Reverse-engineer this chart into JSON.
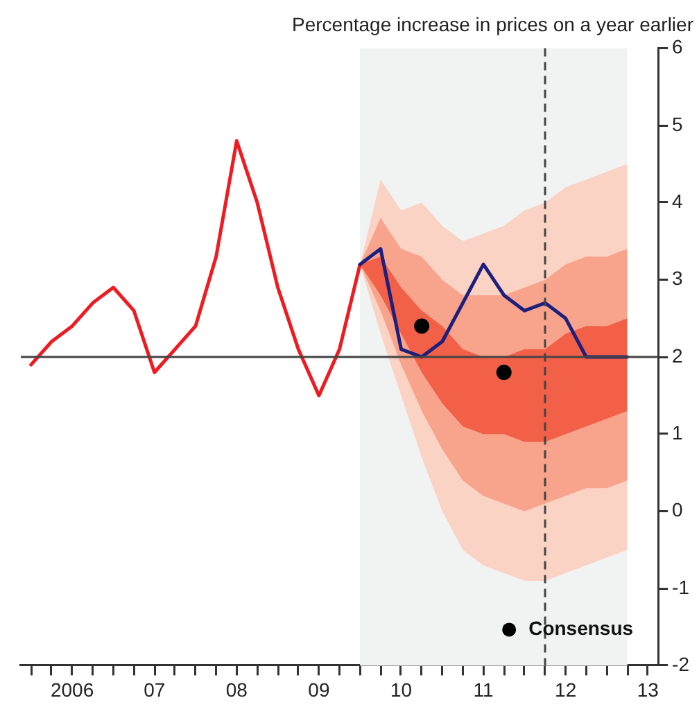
{
  "chart_data": {
    "type": "line",
    "title": "Percentage increase in prices on a year earlier",
    "categories": [
      null,
      null,
      "2006",
      null,
      null,
      null,
      "07",
      null,
      null,
      null,
      "08",
      null,
      null,
      null,
      "09",
      null,
      null,
      null,
      "10",
      null,
      null,
      null,
      "11",
      null,
      null,
      null,
      "12",
      null,
      null,
      null,
      "13"
    ],
    "ylim": [
      -2,
      6
    ],
    "yticks": [
      -2,
      -1,
      0,
      1,
      2,
      3,
      4,
      5,
      6
    ],
    "grid": false,
    "legend": "bottom right",
    "marker": "none",
    "line_style": "solid",
    "ref_lines": [
      {
        "axis": "y",
        "value": 2,
        "color": "#444444",
        "line_style": "solid"
      }
    ],
    "series": [
      {
        "type": "area",
        "color": "#fbd3c5",
        "values": [
          null,
          null,
          null,
          null,
          null,
          null,
          null,
          null,
          null,
          null,
          null,
          null,
          null,
          null,
          null,
          null,
          null,
          null,
          null,
          null,
          null,
          null,
          null,
          null,
          null,
          null,
          null,
          null,
          null,
          null,
          null
        ],
        "lower": [
          null,
          null,
          null,
          null,
          null,
          null,
          null,
          null,
          null,
          null,
          null,
          null,
          null,
          null,
          null,
          null,
          3.2,
          2.3,
          1.5,
          0.7,
          0.0,
          -0.5,
          -0.7,
          -0.8,
          -0.9,
          -0.9,
          -0.8,
          -0.7,
          -0.6,
          -0.5,
          null
        ],
        "upper": [
          null,
          null,
          null,
          null,
          null,
          null,
          null,
          null,
          null,
          null,
          null,
          null,
          null,
          null,
          null,
          null,
          3.2,
          4.3,
          3.9,
          4.0,
          3.7,
          3.5,
          3.6,
          3.7,
          3.9,
          4.0,
          4.2,
          4.3,
          4.4,
          4.5,
          null
        ]
      },
      {
        "type": "area",
        "color": "#f8a48d",
        "values": [
          null,
          null,
          null,
          null,
          null,
          null,
          null,
          null,
          null,
          null,
          null,
          null,
          null,
          null,
          null,
          null,
          null,
          null,
          null,
          null,
          null,
          null,
          null,
          null,
          null,
          null,
          null,
          null,
          null,
          null,
          null
        ],
        "lower": [
          null,
          null,
          null,
          null,
          null,
          null,
          null,
          null,
          null,
          null,
          null,
          null,
          null,
          null,
          null,
          null,
          3.2,
          2.6,
          1.9,
          1.3,
          0.8,
          0.4,
          0.2,
          0.1,
          0.0,
          0.1,
          0.2,
          0.3,
          0.3,
          0.4,
          null
        ],
        "upper": [
          null,
          null,
          null,
          null,
          null,
          null,
          null,
          null,
          null,
          null,
          null,
          null,
          null,
          null,
          null,
          null,
          3.2,
          3.8,
          3.4,
          3.3,
          3.0,
          2.8,
          2.8,
          2.8,
          2.9,
          3.0,
          3.2,
          3.3,
          3.3,
          3.4,
          null
        ]
      },
      {
        "type": "area",
        "color": "#f26048",
        "values": [
          null,
          null,
          null,
          null,
          null,
          null,
          null,
          null,
          null,
          null,
          null,
          null,
          null,
          null,
          null,
          null,
          null,
          null,
          null,
          null,
          null,
          null,
          null,
          null,
          null,
          null,
          null,
          null,
          null,
          null,
          null
        ],
        "lower": [
          null,
          null,
          null,
          null,
          null,
          null,
          null,
          null,
          null,
          null,
          null,
          null,
          null,
          null,
          null,
          null,
          3.2,
          2.8,
          2.3,
          1.8,
          1.4,
          1.1,
          1.0,
          1.0,
          0.9,
          0.9,
          1.0,
          1.1,
          1.2,
          1.3,
          null
        ],
        "upper": [
          null,
          null,
          null,
          null,
          null,
          null,
          null,
          null,
          null,
          null,
          null,
          null,
          null,
          null,
          null,
          null,
          3.2,
          3.3,
          2.9,
          2.6,
          2.4,
          2.1,
          2.0,
          2.0,
          2.1,
          2.1,
          2.3,
          2.4,
          2.4,
          2.5,
          null
        ]
      },
      {
        "color": "#ee1c22",
        "values": [
          1.9,
          2.2,
          2.4,
          2.7,
          2.9,
          2.6,
          1.8,
          2.1,
          2.4,
          3.3,
          4.8,
          4.0,
          2.9,
          2.1,
          1.5,
          2.1,
          3.2,
          null,
          null,
          null,
          null,
          null,
          null,
          null,
          null,
          null,
          null,
          null,
          null,
          null,
          null
        ]
      },
      {
        "color": "#1d1f7c",
        "values": [
          null,
          null,
          null,
          null,
          null,
          null,
          null,
          null,
          null,
          null,
          null,
          null,
          null,
          null,
          null,
          null,
          3.2,
          3.4,
          2.1,
          2.0,
          2.2,
          2.7,
          3.2,
          2.8,
          2.6,
          2.7,
          2.5,
          2.0,
          2.0,
          2.0,
          null
        ]
      },
      {
        "type": "scatter",
        "name": "Consensus",
        "color": "#000000",
        "marker": "circle",
        "values": [
          null,
          null,
          null,
          null,
          null,
          null,
          null,
          null,
          null,
          null,
          null,
          null,
          null,
          null,
          null,
          null,
          null,
          null,
          null,
          2.4,
          null,
          null,
          null,
          1.8,
          null,
          null,
          null,
          null,
          null,
          null,
          null
        ]
      }
    ]
  }
}
